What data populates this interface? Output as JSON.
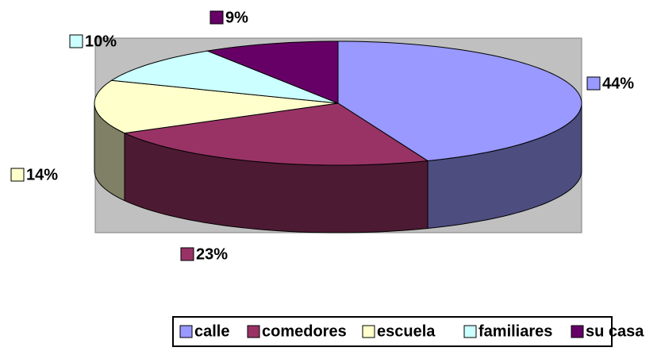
{
  "chart_data": {
    "type": "pie3d",
    "categories": [
      "calle",
      "comedores",
      "escuela",
      "familiares",
      "su casa"
    ],
    "values": [
      44,
      23,
      14,
      10,
      9
    ],
    "value_labels": [
      "44%",
      "23%",
      "14%",
      "10%",
      "9%"
    ],
    "colors": [
      "#9999ff",
      "#993366",
      "#ffffcc",
      "#ccffff",
      "#660066"
    ],
    "legend": "bottom"
  }
}
